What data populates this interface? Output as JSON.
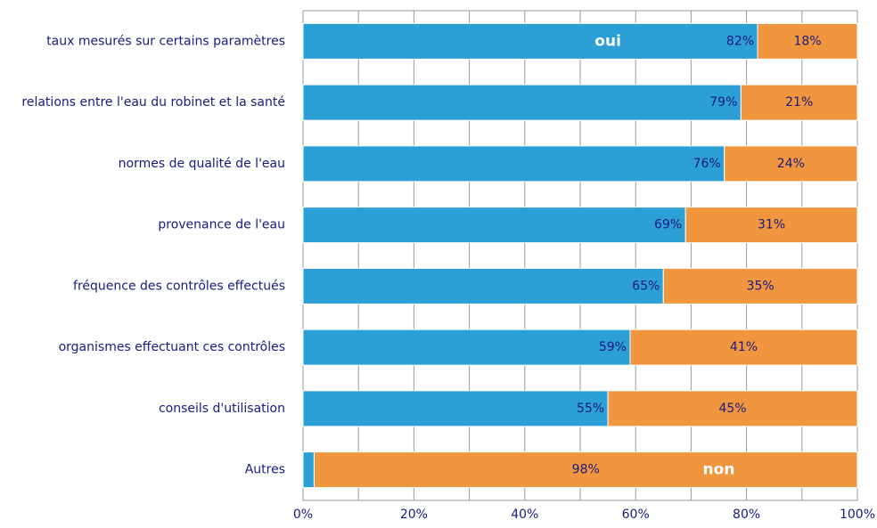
{
  "chart_data": {
    "type": "stacked_barh",
    "categories": [
      "taux mesurés sur certains paramètres",
      "relations entre l'eau du robinet et la santé",
      "normes de qualité de l'eau",
      "provenance de l'eau",
      "fréquence des contrôles effectués",
      "organismes effectuant ces contrôles",
      "conseils d'utilisation",
      "Autres"
    ],
    "series": [
      {
        "name": "oui",
        "color": "#2b9fd6",
        "values": [
          82,
          79,
          76,
          69,
          65,
          59,
          55,
          2
        ],
        "value_labels": [
          "82%",
          "79%",
          "76%",
          "69%",
          "65%",
          "59%",
          "55%",
          null
        ]
      },
      {
        "name": "non",
        "color": "#f0963f",
        "values": [
          18,
          21,
          24,
          31,
          35,
          41,
          45,
          98
        ],
        "value_labels": [
          "18%",
          "21%",
          "24%",
          "31%",
          "35%",
          "41%",
          "45%",
          "98%"
        ]
      }
    ],
    "xlim": [
      0,
      100
    ],
    "xticks": [
      {
        "value": 0,
        "label": "0%"
      },
      {
        "value": 20,
        "label": "20%"
      },
      {
        "value": 40,
        "label": "40%"
      },
      {
        "value": 60,
        "label": "60%"
      },
      {
        "value": 80,
        "label": "80%"
      },
      {
        "value": 100,
        "label": "100%"
      }
    ],
    "grid_ticks": [
      0,
      10,
      20,
      30,
      40,
      50,
      60,
      70,
      80,
      90,
      100
    ],
    "grid": true
  }
}
